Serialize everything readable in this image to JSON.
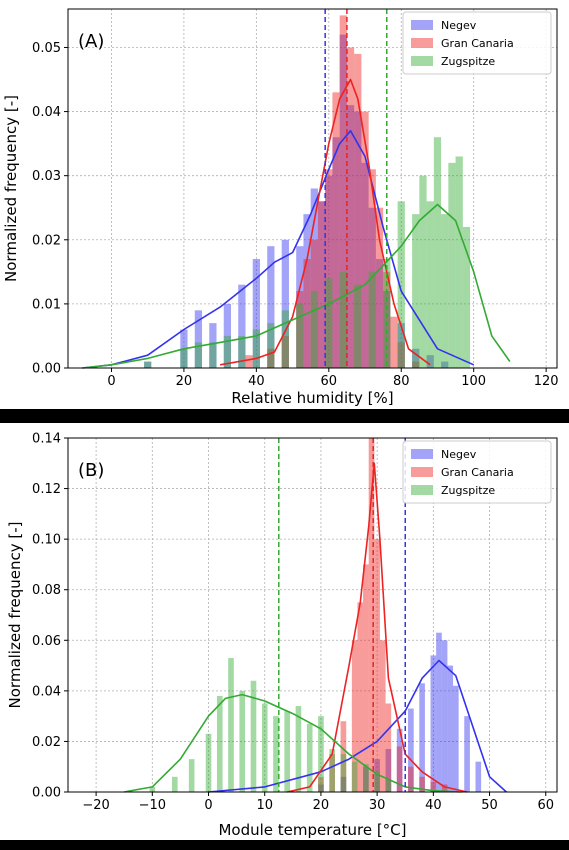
{
  "chart_data": [
    {
      "type": "histogram",
      "panel_label": "(A)",
      "xlabel": "Relative humidity [%]",
      "ylabel": "Normalized frequency [-]",
      "xlim": [
        -12,
        123
      ],
      "ylim": [
        0,
        0.056
      ],
      "xticks": [
        0,
        20,
        40,
        60,
        80,
        100,
        120
      ],
      "yticks": [
        0.0,
        0.01,
        0.02,
        0.03,
        0.04,
        0.05
      ],
      "xtick_labels": [
        "0",
        "20",
        "40",
        "60",
        "80",
        "100",
        "120"
      ],
      "ytick_labels": [
        "0.00",
        "0.01",
        "0.02",
        "0.03",
        "0.04",
        "0.05"
      ],
      "grid": true,
      "legend_position": "top-right",
      "series": [
        {
          "name": "Negev",
          "color": "#3333ee",
          "mean_line": 59,
          "hist_x": [
            10,
            20,
            24,
            28,
            32,
            36,
            40,
            44,
            48,
            52,
            54,
            56,
            58,
            60,
            62,
            64,
            66,
            68,
            70,
            72,
            74,
            76,
            80,
            84,
            88,
            92
          ],
          "hist_y": [
            0.001,
            0.006,
            0.009,
            0.007,
            0.01,
            0.013,
            0.017,
            0.019,
            0.02,
            0.019,
            0.024,
            0.028,
            0.026,
            0.03,
            0.036,
            0.052,
            0.041,
            0.04,
            0.032,
            0.025,
            0.017,
            0.012,
            0.007,
            0.003,
            0.002,
            0.001
          ],
          "kde_x": [
            -8,
            0,
            10,
            20,
            30,
            40,
            45,
            50,
            55,
            60,
            63,
            66,
            70,
            75,
            80,
            90,
            100
          ],
          "kde_y": [
            0.0,
            0.0005,
            0.002,
            0.006,
            0.0095,
            0.014,
            0.0165,
            0.018,
            0.024,
            0.031,
            0.035,
            0.037,
            0.033,
            0.022,
            0.012,
            0.003,
            0.0005
          ]
        },
        {
          "name": "Gran Canaria",
          "color": "#ee2222",
          "mean_line": 65,
          "hist_x": [
            38,
            44,
            48,
            52,
            54,
            56,
            58,
            60,
            62,
            64,
            66,
            68,
            70,
            72,
            74,
            76,
            78,
            80,
            84
          ],
          "hist_y": [
            0.002,
            0.003,
            0.005,
            0.012,
            0.017,
            0.02,
            0.026,
            0.031,
            0.043,
            0.055,
            0.05,
            0.049,
            0.04,
            0.031,
            0.025,
            0.015,
            0.008,
            0.004,
            0.001
          ],
          "kde_x": [
            30,
            40,
            45,
            50,
            54,
            57,
            60,
            63,
            66,
            68,
            71,
            74,
            78,
            82,
            88
          ],
          "kde_y": [
            0.0005,
            0.0015,
            0.0025,
            0.008,
            0.017,
            0.026,
            0.035,
            0.042,
            0.045,
            0.042,
            0.032,
            0.02,
            0.01,
            0.003,
            0.0005
          ]
        },
        {
          "name": "Zugspitze",
          "color": "#33aa33",
          "mean_line": 76,
          "hist_x": [
            10,
            20,
            24,
            28,
            32,
            36,
            40,
            44,
            48,
            52,
            56,
            60,
            64,
            68,
            72,
            76,
            80,
            84,
            86,
            88,
            90,
            92,
            94,
            96,
            98
          ],
          "hist_y": [
            0.001,
            0.003,
            0.004,
            0.004,
            0.005,
            0.005,
            0.006,
            0.007,
            0.009,
            0.01,
            0.012,
            0.014,
            0.015,
            0.013,
            0.015,
            0.017,
            0.026,
            0.024,
            0.03,
            0.026,
            0.036,
            0.024,
            0.032,
            0.033,
            0.022
          ],
          "kde_x": [
            -8,
            0,
            10,
            20,
            30,
            40,
            50,
            60,
            70,
            80,
            85,
            90,
            95,
            100,
            105,
            110
          ],
          "kde_y": [
            0.0,
            0.0005,
            0.0015,
            0.003,
            0.004,
            0.005,
            0.0075,
            0.01,
            0.013,
            0.019,
            0.023,
            0.0255,
            0.023,
            0.015,
            0.005,
            0.001
          ]
        }
      ]
    },
    {
      "type": "histogram",
      "panel_label": "(B)",
      "xlabel": "Module temperature [°C]",
      "ylabel": "Normalized frequency [-]",
      "xlim": [
        -25,
        62
      ],
      "ylim": [
        0,
        0.14
      ],
      "xticks": [
        -20,
        -10,
        0,
        10,
        20,
        30,
        40,
        50,
        60
      ],
      "yticks": [
        0.0,
        0.02,
        0.04,
        0.06,
        0.08,
        0.1,
        0.12,
        0.14
      ],
      "xtick_labels": [
        "−20",
        "−10",
        "0",
        "10",
        "20",
        "30",
        "40",
        "50",
        "60"
      ],
      "ytick_labels": [
        "0.00",
        "0.02",
        "0.04",
        "0.06",
        "0.08",
        "0.10",
        "0.12",
        "0.14"
      ],
      "grid": true,
      "legend_position": "top-right",
      "series": [
        {
          "name": "Negev",
          "color": "#3333ee",
          "mean_line": 35,
          "hist_x": [
            20,
            24,
            28,
            30,
            32,
            34,
            36,
            38,
            40,
            41,
            42,
            43,
            44,
            46,
            48
          ],
          "hist_y": [
            0.003,
            0.006,
            0.01,
            0.013,
            0.017,
            0.025,
            0.033,
            0.043,
            0.054,
            0.063,
            0.06,
            0.05,
            0.042,
            0.03,
            0.012
          ],
          "kde_x": [
            0,
            10,
            20,
            25,
            30,
            35,
            38,
            41,
            44,
            47,
            50,
            53
          ],
          "kde_y": [
            0.0,
            0.002,
            0.008,
            0.013,
            0.02,
            0.032,
            0.045,
            0.052,
            0.046,
            0.026,
            0.006,
            0.0
          ]
        },
        {
          "name": "Gran Canaria",
          "color": "#ee2222",
          "mean_line": 29.3,
          "hist_x": [
            20,
            22,
            24,
            26,
            27,
            28,
            29,
            30,
            31,
            32,
            34,
            36,
            38,
            40,
            42
          ],
          "hist_y": [
            0.006,
            0.015,
            0.028,
            0.06,
            0.075,
            0.09,
            0.14,
            0.1,
            0.06,
            0.035,
            0.018,
            0.01,
            0.006,
            0.004,
            0.003
          ],
          "kde_x": [
            14,
            18,
            22,
            25,
            27,
            28.5,
            29.5,
            30.5,
            32,
            35,
            38,
            42,
            46
          ],
          "kde_y": [
            0.0,
            0.002,
            0.015,
            0.05,
            0.075,
            0.105,
            0.13,
            0.1,
            0.045,
            0.015,
            0.008,
            0.002,
            0.0
          ]
        },
        {
          "name": "Zugspitze",
          "color": "#33aa33",
          "mean_line": 12.5,
          "hist_x": [
            -10,
            -6,
            -3,
            0,
            2,
            4,
            6,
            8,
            10,
            12,
            14,
            16,
            18,
            20,
            22,
            24,
            26,
            28,
            30,
            32
          ],
          "hist_y": [
            0.002,
            0.006,
            0.013,
            0.023,
            0.038,
            0.053,
            0.04,
            0.044,
            0.035,
            0.03,
            0.032,
            0.034,
            0.027,
            0.03,
            0.017,
            0.015,
            0.012,
            0.011,
            0.008,
            0.005
          ],
          "kde_x": [
            -15,
            -10,
            -5,
            0,
            3,
            6,
            10,
            15,
            20,
            25,
            30,
            35,
            40,
            45
          ],
          "kde_y": [
            0.0,
            0.002,
            0.013,
            0.03,
            0.037,
            0.0385,
            0.036,
            0.031,
            0.025,
            0.015,
            0.007,
            0.002,
            0.0005,
            0.0
          ]
        }
      ]
    }
  ]
}
